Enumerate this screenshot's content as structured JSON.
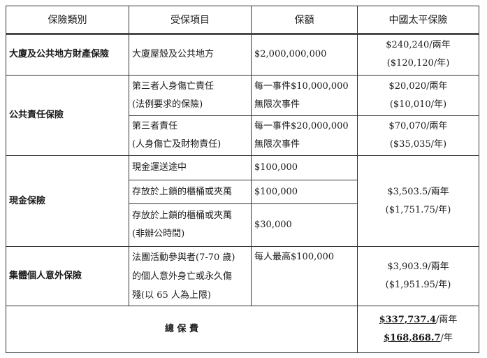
{
  "header": {
    "category": "保險類別",
    "item": "受保項目",
    "coverage": "保額",
    "insurer": "中國太平保險"
  },
  "rows": {
    "property": {
      "category": "大廈及公共地方財產保險",
      "item": "大廈屋殼及公共地方",
      "coverage": "$2,000,000,000",
      "premium_two": "$240,240/兩年",
      "premium_one": "($120,120/年)"
    },
    "liability": {
      "category": "公共責任保險",
      "sub1": {
        "item1": "第三者人身傷亡責任",
        "item2": "(法例要求的保險)",
        "cov1": "每一事件$10,000,000",
        "cov2": "無限次事件",
        "premium_two": "$20,020/兩年",
        "premium_one": "($10,010/年)"
      },
      "sub2": {
        "item1": "第三者責任",
        "item2": "(人身傷亡及財物責任)",
        "cov1": "每一事件$20,000,000",
        "cov2": "無限次事件",
        "premium_two": "$70,070/兩年",
        "premium_one": "($35,035/年)"
      }
    },
    "cash": {
      "category": "現金保險",
      "sub1": {
        "item": "現金運送途中",
        "coverage": "$100,000"
      },
      "sub2": {
        "item": "存放於上鎖的櫃桶或夾萬",
        "coverage": "$100,000"
      },
      "sub3": {
        "item1": "存放於上鎖的櫃桶或夾萬",
        "item2": "(非辦公時間)",
        "coverage": "$30,000"
      },
      "premium_two": "$3,503.5/兩年",
      "premium_one": "($1,751.75/年)"
    },
    "accident": {
      "category": "集體個人意外保險",
      "item1": "法團活動參與者(7-70 歲)",
      "item2": "的個人意外身亡或永久傷",
      "item3": "殘(以 65 人為上限)",
      "coverage": "每人最高$100,000",
      "premium_two": "$3,903.9/兩年",
      "premium_one": "($1,951.95/年)"
    },
    "total": {
      "label": "總 保 費",
      "two_amount": "$337,737.4",
      "two_unit": "/兩年",
      "one_amount": "$168,868.7",
      "one_unit": "/年"
    }
  }
}
